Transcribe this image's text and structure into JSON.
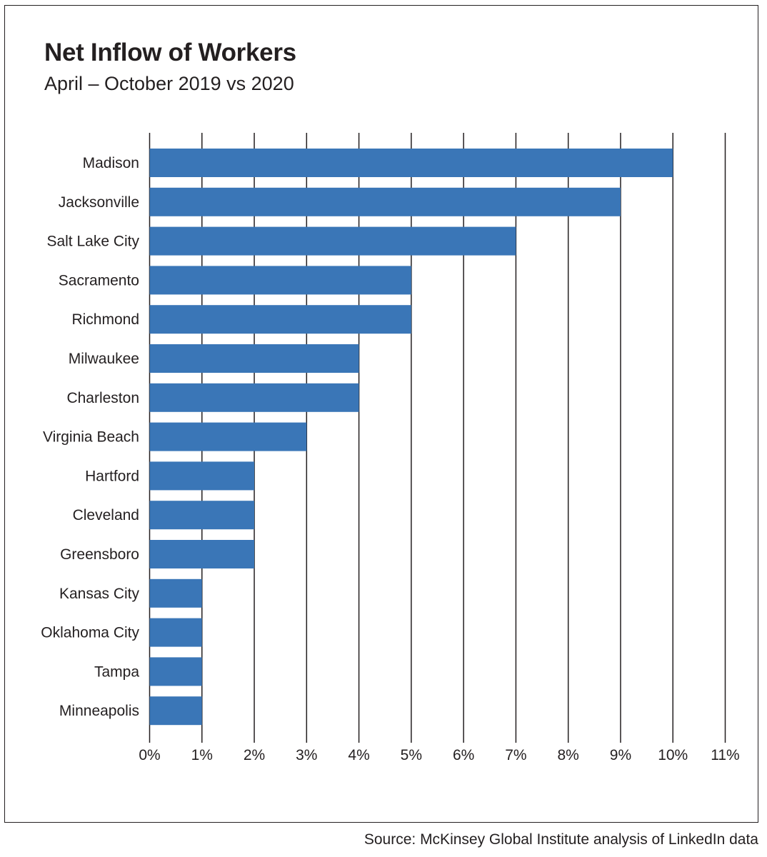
{
  "title": "Net Inflow of Workers",
  "subtitle": "April – October 2019 vs 2020",
  "source": "Source: McKinsey Global Institute analysis of LinkedIn data",
  "chart_data": {
    "type": "bar",
    "orientation": "horizontal",
    "title": "Net Inflow of Workers",
    "subtitle": "April – October 2019 vs 2020",
    "categories": [
      "Madison",
      "Jacksonville",
      "Salt Lake City",
      "Sacramento",
      "Richmond",
      "Milwaukee",
      "Charleston",
      "Virginia Beach",
      "Hartford",
      "Cleveland",
      "Greensboro",
      "Kansas City",
      "Oklahoma City",
      "Tampa",
      "Minneapolis"
    ],
    "values": [
      10,
      9,
      7,
      5,
      5,
      4,
      4,
      3,
      2,
      2,
      2,
      1,
      1,
      1,
      1
    ],
    "xlim": [
      0,
      11
    ],
    "xticks": [
      0,
      1,
      2,
      3,
      4,
      5,
      6,
      7,
      8,
      9,
      10,
      11
    ],
    "tick_labels": [
      "0%",
      "1%",
      "2%",
      "3%",
      "4%",
      "5%",
      "6%",
      "7%",
      "8%",
      "9%",
      "10%",
      "11%"
    ],
    "unit": "%",
    "grid": "vertical",
    "bar_color": "#3a76b7",
    "grid_color": "#231f20"
  }
}
